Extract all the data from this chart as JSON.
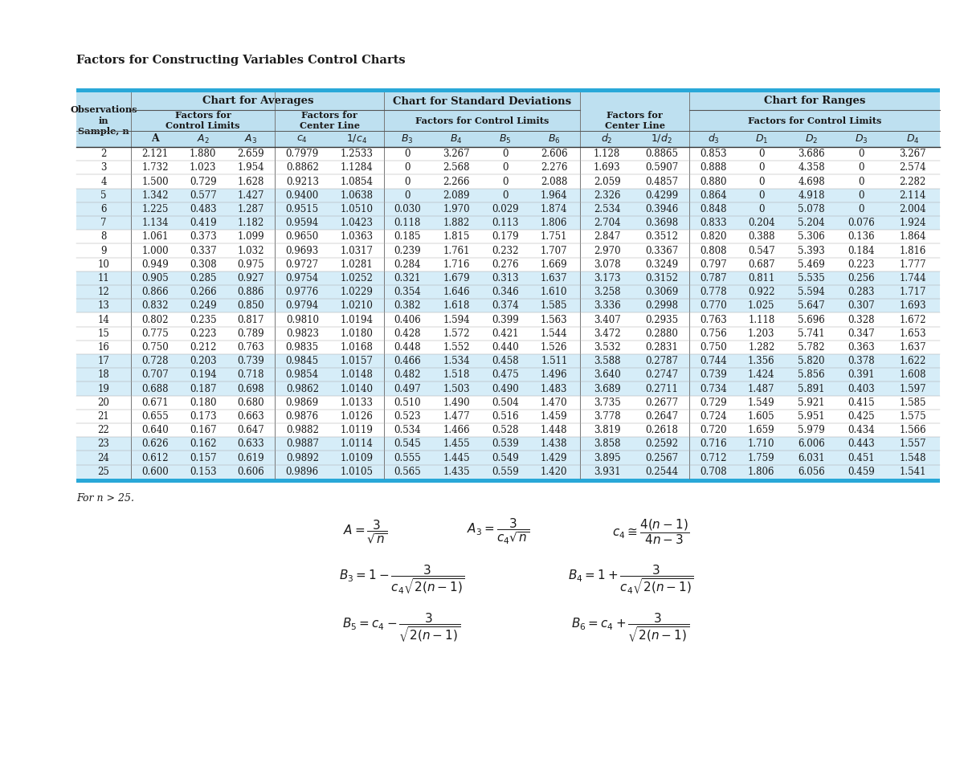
{
  "title": "Factors for Constructing Variables Control Charts",
  "header_bg": "#BEE0F0",
  "stripe_bg": "#D6EDF8",
  "white_bg": "#FFFFFF",
  "border_color": "#29A8D8",
  "text_color": "#1a1a1a",
  "rows": [
    [
      2,
      2.121,
      1.88,
      2.659,
      0.7979,
      1.2533,
      0,
      3.267,
      0,
      2.606,
      1.128,
      0.8865,
      0.853,
      0,
      3.686,
      0,
      3.267
    ],
    [
      3,
      1.732,
      1.023,
      1.954,
      0.8862,
      1.1284,
      0,
      2.568,
      0,
      2.276,
      1.693,
      0.5907,
      0.888,
      0,
      4.358,
      0,
      2.574
    ],
    [
      4,
      1.5,
      0.729,
      1.628,
      0.9213,
      1.0854,
      0,
      2.266,
      0,
      2.088,
      2.059,
      0.4857,
      0.88,
      0,
      4.698,
      0,
      2.282
    ],
    [
      5,
      1.342,
      0.577,
      1.427,
      0.94,
      1.0638,
      0,
      2.089,
      0,
      1.964,
      2.326,
      0.4299,
      0.864,
      0,
      4.918,
      0,
      2.114
    ],
    [
      6,
      1.225,
      0.483,
      1.287,
      0.9515,
      1.051,
      0.03,
      1.97,
      0.029,
      1.874,
      2.534,
      0.3946,
      0.848,
      0,
      5.078,
      0,
      2.004
    ],
    [
      7,
      1.134,
      0.419,
      1.182,
      0.9594,
      1.0423,
      0.118,
      1.882,
      0.113,
      1.806,
      2.704,
      0.3698,
      0.833,
      0.204,
      5.204,
      0.076,
      1.924
    ],
    [
      8,
      1.061,
      0.373,
      1.099,
      0.965,
      1.0363,
      0.185,
      1.815,
      0.179,
      1.751,
      2.847,
      0.3512,
      0.82,
      0.388,
      5.306,
      0.136,
      1.864
    ],
    [
      9,
      1.0,
      0.337,
      1.032,
      0.9693,
      1.0317,
      0.239,
      1.761,
      0.232,
      1.707,
      2.97,
      0.3367,
      0.808,
      0.547,
      5.393,
      0.184,
      1.816
    ],
    [
      10,
      0.949,
      0.308,
      0.975,
      0.9727,
      1.0281,
      0.284,
      1.716,
      0.276,
      1.669,
      3.078,
      0.3249,
      0.797,
      0.687,
      5.469,
      0.223,
      1.777
    ],
    [
      11,
      0.905,
      0.285,
      0.927,
      0.9754,
      1.0252,
      0.321,
      1.679,
      0.313,
      1.637,
      3.173,
      0.3152,
      0.787,
      0.811,
      5.535,
      0.256,
      1.744
    ],
    [
      12,
      0.866,
      0.266,
      0.886,
      0.9776,
      1.0229,
      0.354,
      1.646,
      0.346,
      1.61,
      3.258,
      0.3069,
      0.778,
      0.922,
      5.594,
      0.283,
      1.717
    ],
    [
      13,
      0.832,
      0.249,
      0.85,
      0.9794,
      1.021,
      0.382,
      1.618,
      0.374,
      1.585,
      3.336,
      0.2998,
      0.77,
      1.025,
      5.647,
      0.307,
      1.693
    ],
    [
      14,
      0.802,
      0.235,
      0.817,
      0.981,
      1.0194,
      0.406,
      1.594,
      0.399,
      1.563,
      3.407,
      0.2935,
      0.763,
      1.118,
      5.696,
      0.328,
      1.672
    ],
    [
      15,
      0.775,
      0.223,
      0.789,
      0.9823,
      1.018,
      0.428,
      1.572,
      0.421,
      1.544,
      3.472,
      0.288,
      0.756,
      1.203,
      5.741,
      0.347,
      1.653
    ],
    [
      16,
      0.75,
      0.212,
      0.763,
      0.9835,
      1.0168,
      0.448,
      1.552,
      0.44,
      1.526,
      3.532,
      0.2831,
      0.75,
      1.282,
      5.782,
      0.363,
      1.637
    ],
    [
      17,
      0.728,
      0.203,
      0.739,
      0.9845,
      1.0157,
      0.466,
      1.534,
      0.458,
      1.511,
      3.588,
      0.2787,
      0.744,
      1.356,
      5.82,
      0.378,
      1.622
    ],
    [
      18,
      0.707,
      0.194,
      0.718,
      0.9854,
      1.0148,
      0.482,
      1.518,
      0.475,
      1.496,
      3.64,
      0.2747,
      0.739,
      1.424,
      5.856,
      0.391,
      1.608
    ],
    [
      19,
      0.688,
      0.187,
      0.698,
      0.9862,
      1.014,
      0.497,
      1.503,
      0.49,
      1.483,
      3.689,
      0.2711,
      0.734,
      1.487,
      5.891,
      0.403,
      1.597
    ],
    [
      20,
      0.671,
      0.18,
      0.68,
      0.9869,
      1.0133,
      0.51,
      1.49,
      0.504,
      1.47,
      3.735,
      0.2677,
      0.729,
      1.549,
      5.921,
      0.415,
      1.585
    ],
    [
      21,
      0.655,
      0.173,
      0.663,
      0.9876,
      1.0126,
      0.523,
      1.477,
      0.516,
      1.459,
      3.778,
      0.2647,
      0.724,
      1.605,
      5.951,
      0.425,
      1.575
    ],
    [
      22,
      0.64,
      0.167,
      0.647,
      0.9882,
      1.0119,
      0.534,
      1.466,
      0.528,
      1.448,
      3.819,
      0.2618,
      0.72,
      1.659,
      5.979,
      0.434,
      1.566
    ],
    [
      23,
      0.626,
      0.162,
      0.633,
      0.9887,
      1.0114,
      0.545,
      1.455,
      0.539,
      1.438,
      3.858,
      0.2592,
      0.716,
      1.71,
      6.006,
      0.443,
      1.557
    ],
    [
      24,
      0.612,
      0.157,
      0.619,
      0.9892,
      1.0109,
      0.555,
      1.445,
      0.549,
      1.429,
      3.895,
      0.2567,
      0.712,
      1.759,
      6.031,
      0.451,
      1.548
    ],
    [
      25,
      0.6,
      0.153,
      0.606,
      0.9896,
      1.0105,
      0.565,
      1.435,
      0.559,
      1.42,
      3.931,
      0.2544,
      0.708,
      1.806,
      6.056,
      0.459,
      1.541
    ]
  ],
  "stripe_rows": [
    3,
    4,
    5,
    9,
    10,
    11,
    15,
    16,
    17,
    21,
    22,
    23
  ],
  "formula_text": "For n > 25."
}
